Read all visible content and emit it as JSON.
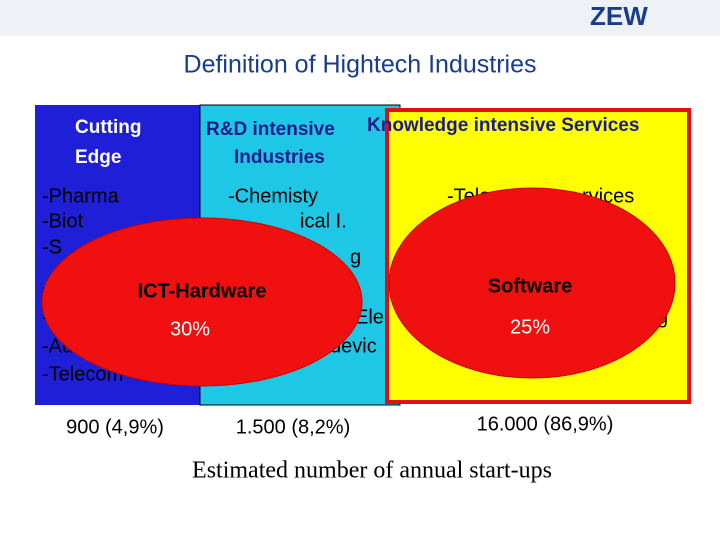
{
  "logo": "ZEW",
  "title": "Definition of Hightech Industries",
  "boxes": [
    {
      "header": [
        "Cutting",
        "Edge"
      ],
      "items": [
        "-Pharma",
        "-Biot",
        "-S",
        "-",
        "-",
        "-Aut",
        "-Telecom"
      ],
      "count": "900 (4,9%)"
    },
    {
      "header": [
        "R&D intensive",
        "Industries"
      ],
      "items": [
        "-Chemisty",
        "ical I.",
        "g",
        "Ele",
        "devic"
      ],
      "count": "1.500 (8,2%)"
    },
    {
      "header": [
        "Knowledge intensive Services"
      ],
      "items": [
        "-Tele",
        "rvices",
        "s",
        "g"
      ],
      "count": "16.000 (86,9%)"
    }
  ],
  "ellipses": [
    {
      "label": "ICT-Hardware",
      "share": "30%"
    },
    {
      "label": "Software",
      "share": "25%"
    }
  ],
  "footer": "Estimated number of annual start-ups"
}
